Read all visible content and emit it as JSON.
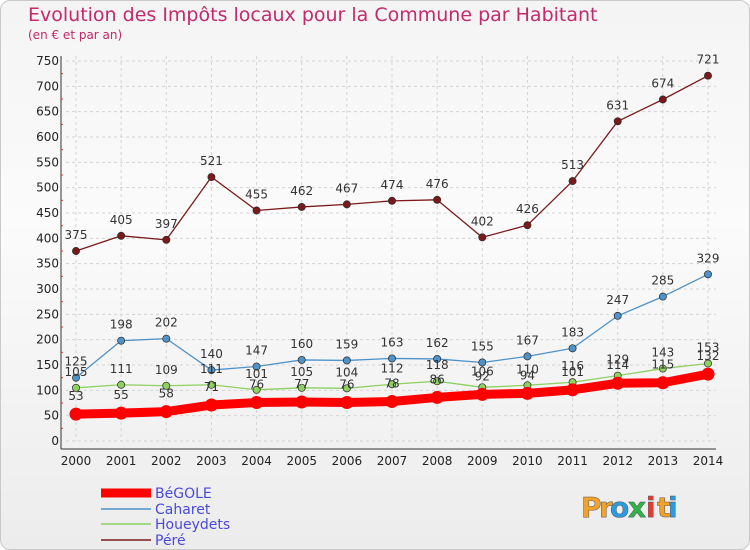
{
  "title": "Evolution des Impôts locaux pour la Commune par Habitant",
  "subtitle": "(en € et par an)",
  "logo": {
    "letters": [
      "P",
      "r",
      "o",
      "x",
      "i",
      "t",
      "i"
    ],
    "colors": [
      "#f2a12a",
      "#f2a12a",
      "#2a9be0",
      "#2fb44a",
      "#e63a2e",
      "#f2a12a",
      "#2a9be0"
    ]
  },
  "chart_data": {
    "type": "line",
    "title": "Evolution des Impôts locaux pour la Commune par Habitant",
    "subtitle": "(en € et par an)",
    "xlabel": "",
    "ylabel": "",
    "x": [
      "2000",
      "2001",
      "2002",
      "2003",
      "2004",
      "2005",
      "2006",
      "2007",
      "2008",
      "2009",
      "2010",
      "2011",
      "2012",
      "2013",
      "2014"
    ],
    "ylim": [
      0,
      750
    ],
    "yticks": [
      0,
      50,
      100,
      150,
      200,
      250,
      300,
      350,
      400,
      450,
      500,
      550,
      600,
      650,
      700,
      750
    ],
    "grid": true,
    "legend_position": "bottom-left",
    "series": [
      {
        "name": "BéGOLE",
        "color": "#ff0000",
        "values": [
          53,
          55,
          58,
          71,
          76,
          77,
          76,
          78,
          86,
          92,
          94,
          101,
          114,
          115,
          132
        ]
      },
      {
        "name": "Caharet",
        "color": "#4f92c8",
        "values": [
          125,
          198,
          202,
          140,
          147,
          160,
          159,
          163,
          162,
          155,
          167,
          183,
          247,
          285,
          329
        ]
      },
      {
        "name": "Houeydets",
        "color": "#8ed061",
        "values": [
          105,
          111,
          109,
          111,
          101,
          105,
          104,
          112,
          118,
          106,
          110,
          116,
          129,
          143,
          153
        ]
      },
      {
        "name": "Péré",
        "color": "#7a1a1a",
        "values": [
          375,
          405,
          397,
          521,
          455,
          462,
          467,
          474,
          476,
          402,
          426,
          513,
          631,
          674,
          721
        ]
      }
    ]
  }
}
